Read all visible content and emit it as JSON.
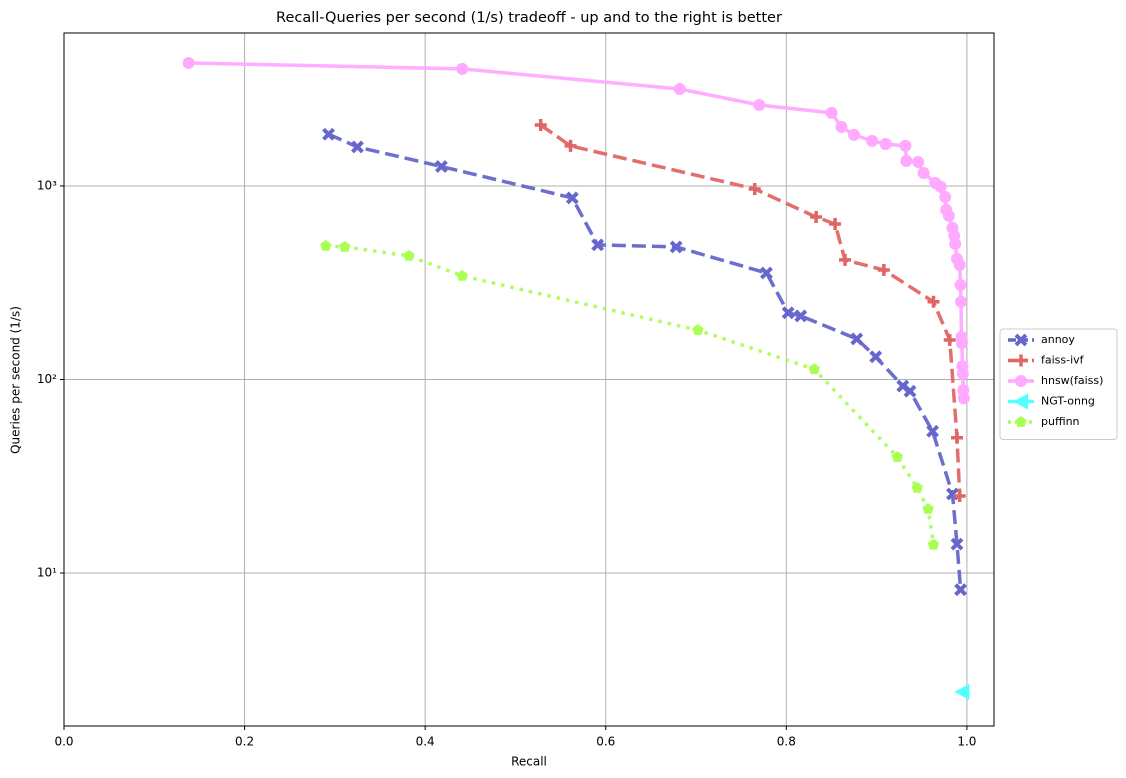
{
  "chart_data": {
    "type": "line",
    "title": "Recall-Queries per second (1/s) tradeoff - up and to the right is better",
    "x_label": "Recall",
    "y_label": "Queries per second (1/s)",
    "xlim": [
      0,
      1.03
    ],
    "ylim": [
      1.62,
      6170
    ],
    "y_scale": "log",
    "grid": true,
    "legend_position": "right",
    "xticks": [
      {
        "value": 0,
        "label": "0.0"
      },
      0.2,
      0.4,
      0.6,
      0.8,
      {
        "value": 1,
        "label": "1.0"
      }
    ],
    "yticks": [
      {
        "value": 10,
        "label": "10¹"
      },
      {
        "value": 100,
        "label": "10²"
      },
      {
        "value": 1000,
        "label": "10³"
      }
    ],
    "series": [
      {
        "name": "annoy",
        "color": "#6666cc",
        "linestyle": "dashed",
        "marker": "x",
        "x": [
          0.293,
          0.325,
          0.418,
          0.563,
          0.591,
          0.678,
          0.778,
          0.802,
          0.816,
          0.878,
          0.899,
          0.929,
          0.937,
          0.962,
          0.984,
          0.989,
          0.993
        ],
        "values": [
          1850,
          1590,
          1260,
          867,
          496,
          484,
          355,
          221,
          213,
          162,
          131,
          92.5,
          87,
          54,
          25.6,
          14.1,
          8.2
        ]
      },
      {
        "name": "faiss-ivf",
        "color": "#e06666",
        "linestyle": "dashed",
        "marker": "plus",
        "x": [
          0.528,
          0.561,
          0.765,
          0.833,
          0.854,
          0.865,
          0.908,
          0.963,
          0.981,
          0.989,
          0.992
        ],
        "values": [
          2066,
          1610,
          965,
          691,
          636,
          415,
          368,
          252,
          160,
          50,
          25
        ]
      },
      {
        "name": "hnsw(faiss)",
        "color": "#ffaaff",
        "linestyle": "solid",
        "marker": "circle",
        "x": [
          0.138,
          0.441,
          0.682,
          0.77,
          0.85,
          0.861,
          0.875,
          0.895,
          0.91,
          0.932,
          0.933,
          0.946,
          0.952,
          0.965,
          0.971,
          0.976,
          0.977,
          0.98,
          0.984,
          0.986,
          0.987,
          0.989,
          0.992,
          0.993,
          0.9935,
          0.994,
          0.9945,
          0.995,
          0.9955,
          0.996,
          0.9965
        ],
        "values": [
          4320,
          4025,
          3170,
          2620,
          2385,
          2019,
          1835,
          1709,
          1648,
          1610,
          1346,
          1330,
          1167,
          1036,
          989,
          877,
          752,
          700,
          607,
          552,
          502,
          420,
          391,
          308,
          252,
          166,
          154,
          117,
          107,
          88,
          80
        ]
      },
      {
        "name": "NGT-onng",
        "color": "#55ffff",
        "linestyle": "solid",
        "marker": "triangle-left",
        "x": [
          0.995
        ],
        "values": [
          2.43
        ]
      },
      {
        "name": "puffinn",
        "color": "#aaff55",
        "linestyle": "dotted",
        "marker": "pentagon",
        "x": [
          0.29,
          0.311,
          0.382,
          0.441,
          0.702,
          0.831,
          0.923,
          0.945,
          0.957,
          0.963
        ],
        "values": [
          490,
          484,
          435,
          343,
          180,
          113,
          39.7,
          27.5,
          21.4,
          14.0
        ]
      }
    ]
  }
}
